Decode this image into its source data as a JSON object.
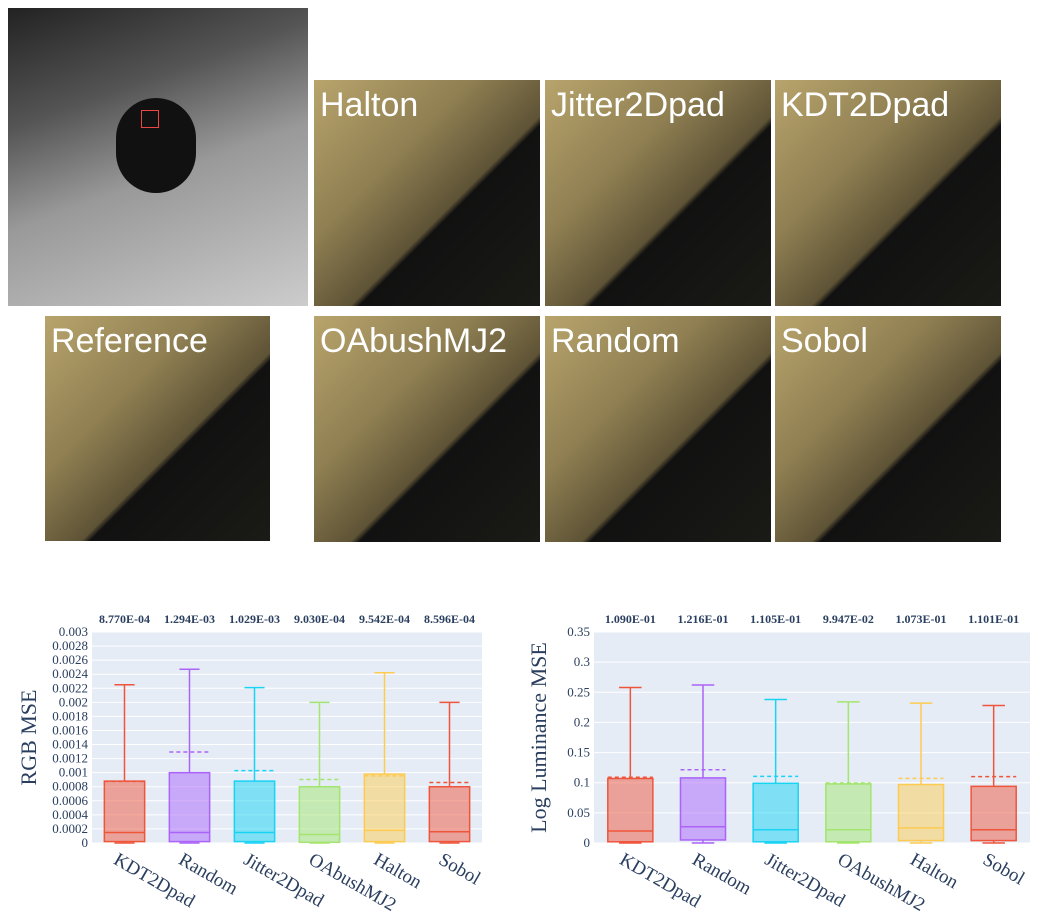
{
  "images": {
    "panels": [
      {
        "label": "Halton"
      },
      {
        "label": "Jitter2Dpad"
      },
      {
        "label": "KDT2Dpad"
      },
      {
        "label": "Reference"
      },
      {
        "label": "OAbushMJ2"
      },
      {
        "label": "Random"
      },
      {
        "label": "Sobol"
      }
    ]
  },
  "chart_data": [
    {
      "type": "box",
      "y_label": "RGB MSE",
      "categories": [
        "KDT2Dpad",
        "Random",
        "Jitter2Dpad",
        "OAbushMJ2",
        "Halton",
        "Sobol"
      ],
      "colors": [
        "#ef553b",
        "#ab63fa",
        "#19d3f3",
        "#a3e56f",
        "#fecb52",
        "#ef553b"
      ],
      "min": [
        0,
        0,
        0,
        0,
        0,
        0
      ],
      "q1": [
        2e-05,
        2e-05,
        2e-05,
        1e-05,
        2e-05,
        2e-05
      ],
      "median": [
        0.00015,
        0.00015,
        0.00015,
        0.00012,
        0.00018,
        0.00016
      ],
      "q3": [
        0.00088,
        0.001,
        0.00088,
        0.0008,
        0.00098,
        0.0008
      ],
      "max": [
        0.00225,
        0.00247,
        0.00221,
        0.002,
        0.00242,
        0.002
      ],
      "mean": [
        0.000877,
        0.001294,
        0.001029,
        0.000903,
        0.0009542,
        0.0008596
      ],
      "mean_labels": [
        "8.770E-04",
        "1.294E-03",
        "1.029E-03",
        "9.030E-04",
        "9.542E-04",
        "8.596E-04"
      ],
      "ylim": [
        0,
        0.003
      ],
      "yticks": [
        0,
        0.0002,
        0.0004,
        0.0006,
        0.0008,
        0.001,
        0.0012,
        0.0014,
        0.0016,
        0.0018,
        0.002,
        0.0022,
        0.0024,
        0.0026,
        0.0028,
        0.003
      ],
      "grid": true
    },
    {
      "type": "box",
      "y_label": "Log Luminance MSE",
      "categories": [
        "KDT2Dpad",
        "Random",
        "Jitter2Dpad",
        "OAbushMJ2",
        "Halton",
        "Sobol"
      ],
      "colors": [
        "#ef553b",
        "#ab63fa",
        "#19d3f3",
        "#a3e56f",
        "#fecb52",
        "#ef553b"
      ],
      "min": [
        0,
        0,
        0,
        0,
        0,
        0
      ],
      "q1": [
        0.002,
        0.005,
        0.002,
        0.002,
        0.004,
        0.004
      ],
      "median": [
        0.02,
        0.027,
        0.022,
        0.022,
        0.025,
        0.022
      ],
      "q3": [
        0.107,
        0.108,
        0.099,
        0.098,
        0.097,
        0.094
      ],
      "max": [
        0.258,
        0.262,
        0.238,
        0.234,
        0.232,
        0.228
      ],
      "mean": [
        0.109,
        0.1216,
        0.1105,
        0.09947,
        0.1073,
        0.1101
      ],
      "mean_labels": [
        "1.090E-01",
        "1.216E-01",
        "1.105E-01",
        "9.947E-02",
        "1.073E-01",
        "1.101E-01"
      ],
      "ylim": [
        0,
        0.35
      ],
      "yticks": [
        0,
        0.05,
        0.1,
        0.15,
        0.2,
        0.25,
        0.3,
        0.35
      ],
      "grid": true
    }
  ]
}
